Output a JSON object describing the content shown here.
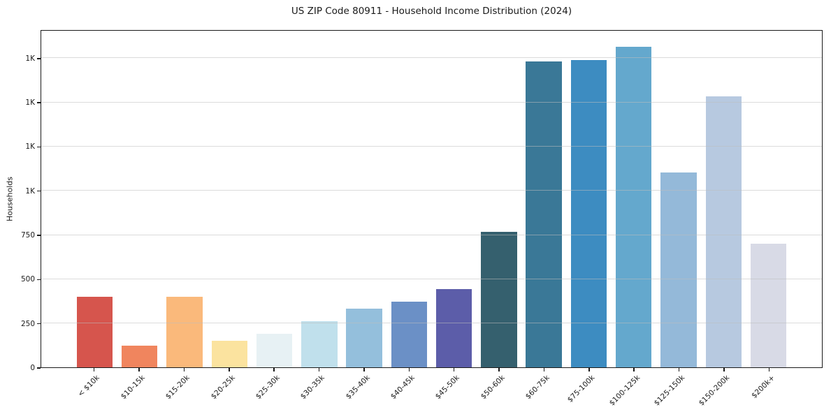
{
  "chart_data": {
    "type": "bar",
    "title": "US ZIP Code 80911 - Household Income Distribution (2024)",
    "xlabel": "",
    "ylabel": "Households",
    "categories": [
      "< $10k",
      "$10-15k",
      "$15-20k",
      "$20-25k",
      "$25-30k",
      "$30-35k",
      "$35-40k",
      "$40-45k",
      "$45-50k",
      "$50-60k",
      "$60-75k",
      "$75-100k",
      "$100-125k",
      "$125-150k",
      "$150-200k",
      "$200k+"
    ],
    "values": [
      400,
      122,
      400,
      150,
      190,
      260,
      332,
      372,
      445,
      770,
      1737,
      1745,
      1820,
      1105,
      1540,
      700
    ],
    "bar_colors": [
      "#d6554d",
      "#f0855e",
      "#fab97b",
      "#fbe39f",
      "#e7f1f4",
      "#c0e0ec",
      "#94bfdc",
      "#6b90c6",
      "#5c5da9",
      "#35606e",
      "#3a7897",
      "#3d8cc1",
      "#64a8cd",
      "#94b9d9",
      "#b7c9e0",
      "#d8dae6"
    ],
    "yticks": [
      {
        "value": 0,
        "label": "0"
      },
      {
        "value": 250,
        "label": "250"
      },
      {
        "value": 500,
        "label": "500"
      },
      {
        "value": 750,
        "label": "750"
      },
      {
        "value": 1000,
        "label": "1K"
      },
      {
        "value": 1250,
        "label": "1K"
      },
      {
        "value": 1500,
        "label": "1K"
      },
      {
        "value": 1750,
        "label": "1K"
      }
    ],
    "ylim": [
      0,
      1911
    ],
    "grid": "horizontal",
    "legend": "none",
    "bar_width_fraction": 0.8
  }
}
